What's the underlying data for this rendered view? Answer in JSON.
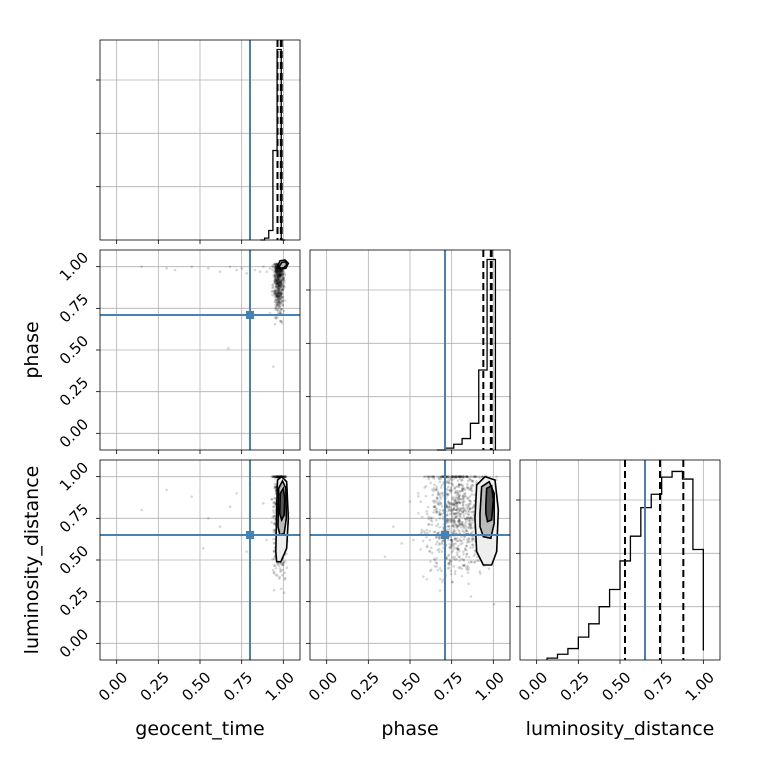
{
  "chart_data": {
    "type": "corner",
    "parameters": [
      "geocent_time",
      "phase",
      "luminosity_distance"
    ],
    "axis_range": [
      -0.1,
      1.1
    ],
    "tick_labels": [
      "0.00",
      "0.25",
      "0.50",
      "0.75",
      "1.00"
    ],
    "tick_values": [
      0,
      0.25,
      0.5,
      0.75,
      1.0
    ],
    "grid": true,
    "truths": {
      "geocent_time": 0.8,
      "phase": 0.71,
      "luminosity_distance": 0.65
    },
    "truth_color": "#4682b4",
    "sample_color": "#000000",
    "quantiles": {
      "geocent_time": [
        0.965,
        0.985,
        0.99
      ],
      "phase": [
        0.94,
        0.985,
        0.99
      ],
      "luminosity_distance": [
        0.53,
        0.74,
        0.88
      ]
    },
    "histograms": {
      "geocent_time": {
        "edges": [
          0.8625,
          0.8875,
          0.9125,
          0.9375,
          0.9625,
          0.9875,
          1.0125
        ],
        "heights": [
          0,
          0.01,
          0.05,
          0.47,
          1.0,
          0
        ]
      },
      "phase": {
        "edges": [
          0.6625,
          0.7125,
          0.7625,
          0.8125,
          0.8625,
          0.9125,
          0.9625,
          1.0125
        ],
        "heights": [
          0,
          0.01,
          0.03,
          0.06,
          0.14,
          0.42,
          1.0
        ]
      },
      "luminosity_distance": {
        "edges": [
          0.0625,
          0.125,
          0.1875,
          0.25,
          0.3125,
          0.375,
          0.4375,
          0.5,
          0.5625,
          0.625,
          0.6875,
          0.75,
          0.8125,
          0.875,
          0.9375,
          1.0
        ],
        "heights": [
          0.01,
          0.03,
          0.06,
          0.12,
          0.19,
          0.28,
          0.37,
          0.52,
          0.65,
          0.8,
          0.87,
          0.96,
          0.99,
          0.95,
          0.58,
          0.05
        ]
      }
    },
    "contours_2d": {
      "phase_vs_geocent_time": [
        {
          "points": [
            [
              0.965,
              1.0
            ],
            [
              0.98,
              1.035
            ],
            [
              1.01,
              1.04
            ],
            [
              1.03,
              1.02
            ],
            [
              1.015,
              0.99
            ],
            [
              0.985,
              0.985
            ]
          ]
        },
        {
          "points": [
            [
              0.975,
              1.0
            ],
            [
              0.99,
              1.025
            ],
            [
              1.015,
              1.03
            ],
            [
              1.02,
              1.01
            ],
            [
              1.005,
              0.995
            ],
            [
              0.985,
              0.99
            ]
          ]
        }
      ],
      "luminosity_distance_vs_geocent_time": [
        {
          "points": [
            [
              0.955,
              0.55
            ],
            [
              0.96,
              0.8
            ],
            [
              0.965,
              0.98
            ],
            [
              0.99,
              1.0
            ],
            [
              1.02,
              0.97
            ],
            [
              1.03,
              0.75
            ],
            [
              1.02,
              0.57
            ],
            [
              0.985,
              0.49
            ],
            [
              0.96,
              0.49
            ]
          ]
        },
        {
          "points": [
            [
              0.968,
              0.7
            ],
            [
              0.972,
              0.93
            ],
            [
              0.995,
              0.975
            ],
            [
              1.015,
              0.93
            ],
            [
              1.018,
              0.75
            ],
            [
              1.005,
              0.66
            ],
            [
              0.98,
              0.65
            ]
          ]
        },
        {
          "points": [
            [
              0.978,
              0.78
            ],
            [
              0.982,
              0.9
            ],
            [
              1.0,
              0.93
            ],
            [
              1.008,
              0.87
            ],
            [
              1.005,
              0.77
            ],
            [
              0.99,
              0.74
            ]
          ]
        }
      ],
      "luminosity_distance_vs_phase": [
        {
          "points": [
            [
              0.89,
              0.75
            ],
            [
              0.9,
              0.95
            ],
            [
              0.95,
              1.0
            ],
            [
              1.01,
              0.98
            ],
            [
              1.03,
              0.8
            ],
            [
              1.02,
              0.55
            ],
            [
              0.99,
              0.47
            ],
            [
              0.94,
              0.47
            ],
            [
              0.9,
              0.55
            ]
          ]
        },
        {
          "points": [
            [
              0.92,
              0.78
            ],
            [
              0.93,
              0.94
            ],
            [
              0.975,
              0.97
            ],
            [
              1.005,
              0.9
            ],
            [
              1.005,
              0.72
            ],
            [
              0.985,
              0.63
            ],
            [
              0.94,
              0.64
            ],
            [
              0.92,
              0.7
            ]
          ]
        },
        {
          "points": [
            [
              0.955,
              0.83
            ],
            [
              0.96,
              0.93
            ],
            [
              0.99,
              0.945
            ],
            [
              1.0,
              0.86
            ],
            [
              0.99,
              0.74
            ],
            [
              0.965,
              0.73
            ],
            [
              0.955,
              0.78
            ]
          ]
        }
      ]
    },
    "scatter_2d": {
      "phase_vs_geocent_time": {
        "outliers": [
          [
            0.15,
            1.0
          ],
          [
            0.3,
            0.99
          ],
          [
            0.35,
            0.98
          ],
          [
            0.45,
            1.0
          ],
          [
            0.55,
            0.99
          ],
          [
            0.62,
            0.97
          ],
          [
            0.68,
            1.0
          ],
          [
            0.72,
            0.98
          ],
          [
            0.75,
            0.99
          ],
          [
            0.78,
            0.96
          ],
          [
            0.83,
            0.98
          ],
          [
            0.86,
            0.97
          ],
          [
            0.88,
            1.0
          ],
          [
            0.9,
            0.97
          ],
          [
            0.92,
            0.99
          ],
          [
            0.67,
            0.51
          ],
          [
            0.94,
            0.4
          ],
          [
            0.93,
            0.85
          ],
          [
            0.92,
            0.72
          ]
        ],
        "core": {
          "x_min": 0.935,
          "x_max": 1.01,
          "y_min": 0.55,
          "y_max": 1.02,
          "count": 520
        }
      },
      "luminosity_distance_vs_geocent_time": {
        "outliers": [
          [
            0.15,
            0.8
          ],
          [
            0.3,
            0.92
          ],
          [
            0.45,
            0.88
          ],
          [
            0.55,
            0.75
          ],
          [
            0.62,
            0.7
          ],
          [
            0.68,
            0.82
          ],
          [
            0.72,
            0.9
          ],
          [
            0.78,
            0.55
          ],
          [
            0.8,
            0.96
          ],
          [
            0.82,
            0.67
          ],
          [
            0.88,
            0.84
          ],
          [
            0.9,
            0.62
          ],
          [
            0.52,
            0.57
          ]
        ],
        "core": {
          "x_min": 0.93,
          "x_max": 1.03,
          "y_min": 0.08,
          "y_max": 1.0,
          "count": 700
        }
      },
      "luminosity_distance_vs_phase": {
        "outliers": [
          [
            0.5,
            0.85
          ],
          [
            0.55,
            0.78
          ],
          [
            0.6,
            0.65
          ],
          [
            0.62,
            0.55
          ],
          [
            0.45,
            0.6
          ],
          [
            0.65,
            0.5
          ],
          [
            0.55,
            0.9
          ],
          [
            0.4,
            0.7
          ],
          [
            0.35,
            0.52
          ],
          [
            0.68,
            0.45
          ],
          [
            0.7,
            0.9
          ],
          [
            0.58,
            0.4
          ],
          [
            0.52,
            0.62
          ]
        ],
        "core": {
          "x_min": 0.55,
          "x_max": 1.02,
          "y_min": 0.06,
          "y_max": 1.0,
          "count": 900
        }
      }
    },
    "xlabels": [
      "geocent_time",
      "phase",
      "luminosity_distance"
    ],
    "ylabels": [
      "",
      "phase",
      "luminosity_distance"
    ]
  }
}
